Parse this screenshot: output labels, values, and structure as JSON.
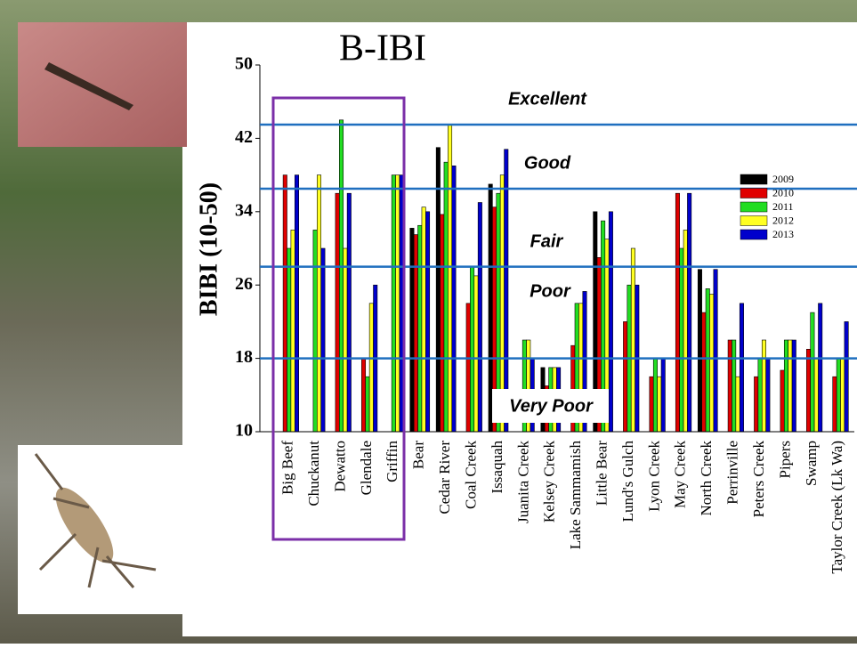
{
  "chart_data": {
    "type": "bar",
    "title": "B-IBI",
    "y_label": "BIBI (10-50)",
    "categories": [
      "Big Beef",
      "Chuckanut",
      "Dewatto",
      "Glendale",
      "Griffin",
      "Bear",
      "Cedar River",
      "Coal Creek",
      "Issaquah",
      "Juanita Creek",
      "Kelsey Creek",
      "Lake Sammamish",
      "Little Bear",
      "Lund's Gulch",
      "Lyon Creek",
      "May Creek",
      "North Creek",
      "Perrinville",
      "Peters Creek",
      "Pipers",
      "Swamp",
      "Taylor Creek (Lk Wa)"
    ],
    "series": [
      {
        "name": "2009",
        "color": "#000000",
        "values": [
          null,
          null,
          null,
          null,
          null,
          32.2,
          41,
          null,
          37,
          null,
          17,
          null,
          34,
          null,
          null,
          null,
          27.7,
          null,
          null,
          null,
          null,
          null
        ]
      },
      {
        "name": "2010",
        "color": "#e00000",
        "values": [
          38,
          null,
          36,
          18,
          null,
          31.5,
          33.7,
          24,
          34.5,
          null,
          15,
          19.4,
          29,
          22,
          16,
          36,
          23,
          20,
          16,
          16.7,
          19,
          16
        ]
      },
      {
        "name": "2011",
        "color": "#22dd22",
        "values": [
          30,
          32,
          44,
          16,
          38,
          32.5,
          39.4,
          28,
          36,
          20,
          17,
          24,
          33,
          26,
          18,
          30,
          25.6,
          20,
          18,
          20,
          23,
          18
        ]
      },
      {
        "name": "2012",
        "color": "#ffff22",
        "values": [
          32,
          38,
          30,
          24,
          38,
          34.5,
          43.5,
          27,
          38,
          20,
          17,
          24,
          31,
          30,
          16,
          32,
          25,
          16,
          20,
          20,
          18,
          18
        ]
      },
      {
        "name": "2013",
        "color": "#0000cc",
        "values": [
          38,
          30,
          36,
          26,
          38,
          34,
          39,
          35,
          40.8,
          18,
          17,
          25.3,
          34,
          26,
          18,
          36,
          27.7,
          24,
          18,
          20,
          24,
          22
        ]
      }
    ],
    "ylim": [
      10,
      50
    ],
    "yticks": [
      10,
      18,
      26,
      34,
      42,
      50
    ],
    "threshold_lines": [
      43.5,
      36.5,
      28,
      18
    ],
    "threshold_color": "#1f6fbf",
    "zones": [
      "Excellent",
      "Good",
      "Fair",
      "Poor",
      "Very Poor"
    ]
  }
}
